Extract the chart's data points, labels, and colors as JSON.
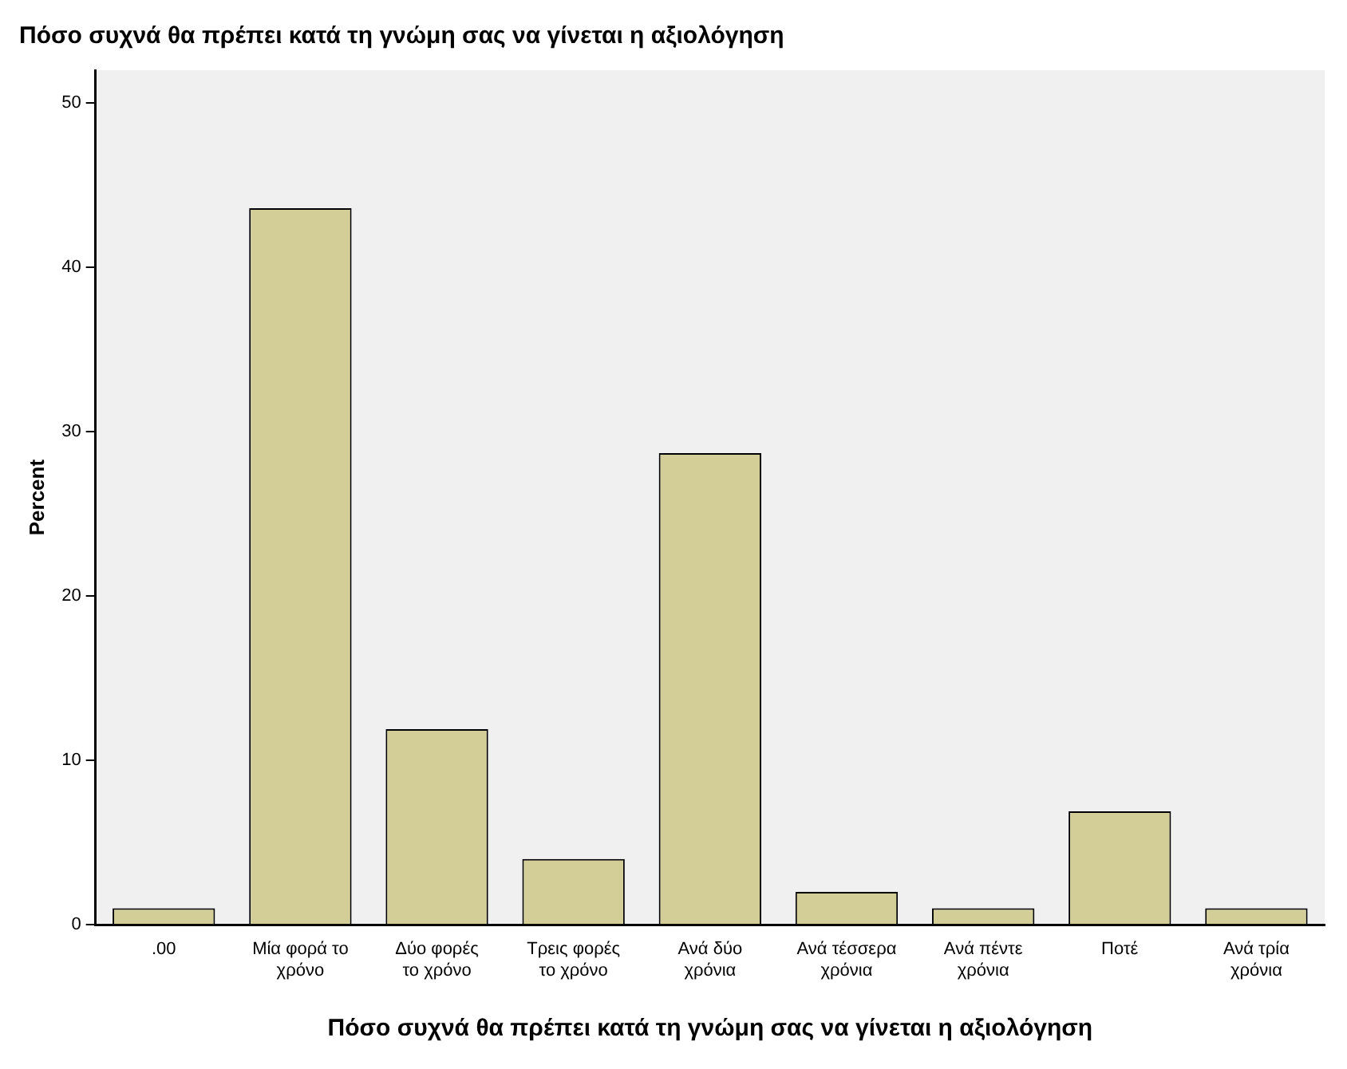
{
  "chart_data": {
    "type": "bar",
    "title": "Πόσο συχνά θα πρέπει κατά τη γνώμη σας να γίνεται η αξιολόγηση",
    "xlabel": "Πόσο συχνά θα πρέπει κατά τη γνώμη σας να γίνεται η αξιολόγηση",
    "ylabel": "Percent",
    "categories": [
      ".00",
      "Μία φορά το χρόνο",
      "Δύο φορές το χρόνο",
      "Τρεις φορές το χρόνο",
      "Ανά δύο χρόνια",
      "Ανά τέσσερα χρόνια",
      "Ανά πέντε χρόνια",
      "Ποτέ",
      "Ανά τρία χρόνια"
    ],
    "values": [
      1.0,
      43.6,
      11.9,
      4.0,
      28.7,
      2.0,
      1.0,
      6.9,
      1.0
    ],
    "color": "#d3ce97",
    "ylim": [
      0,
      52
    ],
    "yticks": [
      0,
      10,
      20,
      30,
      40,
      50
    ],
    "grid": false,
    "legend": false
  }
}
